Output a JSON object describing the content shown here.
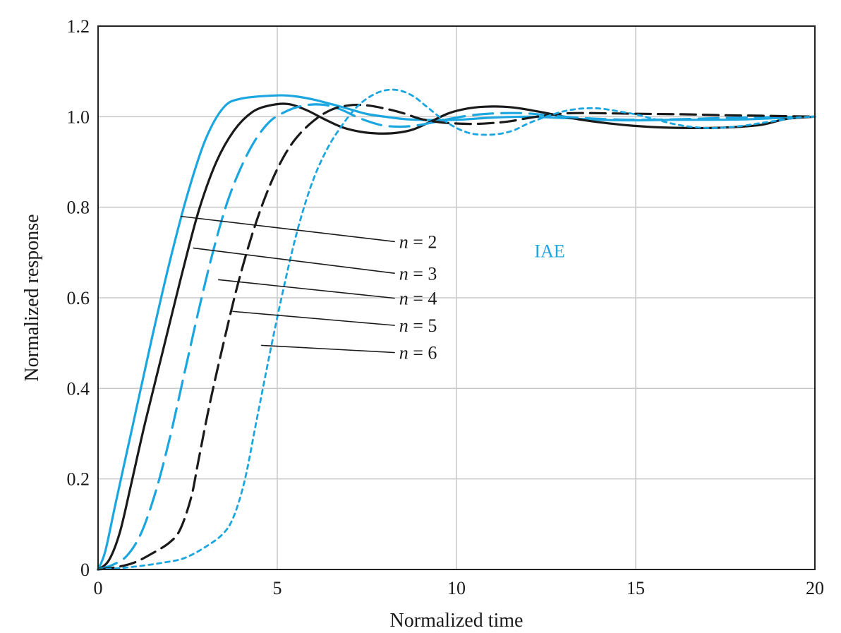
{
  "chart_data": {
    "type": "line",
    "title": "",
    "xlabel": "Normalized time",
    "ylabel": "Normalized response",
    "xlim": [
      0,
      20
    ],
    "ylim": [
      0,
      1.2
    ],
    "x_ticks": [
      {
        "value": 0,
        "label": "0"
      },
      {
        "value": 5,
        "label": "5"
      },
      {
        "value": 10,
        "label": "10"
      },
      {
        "value": 15,
        "label": "15"
      },
      {
        "value": 20,
        "label": "20"
      }
    ],
    "y_ticks": [
      {
        "value": 0,
        "label": "0"
      },
      {
        "value": 0.2,
        "label": "0.2"
      },
      {
        "value": 0.4,
        "label": "0.4"
      },
      {
        "value": 0.6,
        "label": "0.6"
      },
      {
        "value": 0.8,
        "label": "0.8"
      },
      {
        "value": 1.0,
        "label": "1.0"
      },
      {
        "value": 1.2,
        "label": "1.2"
      }
    ],
    "grid": true,
    "annotation": {
      "text": "IAE",
      "x": 12.6,
      "y": 0.69,
      "color": "#1ba6e0"
    },
    "series": [
      {
        "name": "n = 2",
        "label_var": "n",
        "label_rest": " = 2",
        "color": "#1ba6e0",
        "dash": "solid",
        "width": 3.2,
        "leader_point": [
          2.3,
          0.78
        ],
        "label_pos": [
          8.4,
          0.71
        ],
        "points": [
          [
            0,
            0
          ],
          [
            0.2,
            0.04
          ],
          [
            0.5,
            0.15
          ],
          [
            1.0,
            0.33
          ],
          [
            1.5,
            0.51
          ],
          [
            2.0,
            0.68
          ],
          [
            2.5,
            0.83
          ],
          [
            3.0,
            0.95
          ],
          [
            3.5,
            1.02
          ],
          [
            4.0,
            1.04
          ],
          [
            5.0,
            1.047
          ],
          [
            5.5,
            1.045
          ],
          [
            6.0,
            1.038
          ],
          [
            6.5,
            1.028
          ],
          [
            7.0,
            1.017
          ],
          [
            7.5,
            1.006
          ],
          [
            8.0,
            1.0
          ],
          [
            8.5,
            0.995
          ],
          [
            9.0,
            0.993
          ],
          [
            10.0,
            0.993
          ],
          [
            11.0,
            0.998
          ],
          [
            12.0,
            1.0
          ],
          [
            13.0,
            0.997
          ],
          [
            14.0,
            0.993
          ],
          [
            15.0,
            0.992
          ],
          [
            16.0,
            0.993
          ],
          [
            17.0,
            0.993
          ],
          [
            18.0,
            0.994
          ],
          [
            19.0,
            0.997
          ],
          [
            20.0,
            1.0
          ]
        ]
      },
      {
        "name": "n = 3",
        "label_var": "n",
        "label_rest": " = 3",
        "color": "#1a1a1a",
        "dash": "solid",
        "width": 3.2,
        "leader_point": [
          2.65,
          0.71
        ],
        "label_pos": [
          8.4,
          0.64
        ],
        "points": [
          [
            0,
            0
          ],
          [
            0.3,
            0.02
          ],
          [
            0.6,
            0.08
          ],
          [
            0.9,
            0.18
          ],
          [
            1.3,
            0.32
          ],
          [
            1.8,
            0.48
          ],
          [
            2.3,
            0.64
          ],
          [
            2.8,
            0.79
          ],
          [
            3.3,
            0.9
          ],
          [
            3.8,
            0.97
          ],
          [
            4.3,
            1.01
          ],
          [
            4.8,
            1.025
          ],
          [
            5.3,
            1.028
          ],
          [
            5.8,
            1.015
          ],
          [
            6.3,
            0.995
          ],
          [
            6.8,
            0.977
          ],
          [
            7.3,
            0.967
          ],
          [
            7.8,
            0.963
          ],
          [
            8.3,
            0.964
          ],
          [
            8.8,
            0.972
          ],
          [
            9.3,
            0.99
          ],
          [
            9.8,
            1.008
          ],
          [
            10.3,
            1.018
          ],
          [
            10.8,
            1.022
          ],
          [
            11.3,
            1.022
          ],
          [
            11.8,
            1.018
          ],
          [
            12.5,
            1.008
          ],
          [
            13.5,
            0.993
          ],
          [
            14.5,
            0.983
          ],
          [
            15.5,
            0.977
          ],
          [
            16.5,
            0.975
          ],
          [
            17.5,
            0.976
          ],
          [
            18.5,
            0.982
          ],
          [
            19.2,
            0.995
          ],
          [
            20.0,
            1.0
          ]
        ]
      },
      {
        "name": "n = 4",
        "label_var": "n",
        "label_rest": " = 4",
        "color": "#1ba6e0",
        "dash": "28 12",
        "width": 3.2,
        "leader_point": [
          3.35,
          0.64
        ],
        "label_pos": [
          8.4,
          0.585
        ],
        "points": [
          [
            0,
            0
          ],
          [
            0.4,
            0.01
          ],
          [
            0.8,
            0.03
          ],
          [
            1.2,
            0.08
          ],
          [
            1.6,
            0.17
          ],
          [
            2.0,
            0.29
          ],
          [
            2.4,
            0.43
          ],
          [
            2.8,
            0.57
          ],
          [
            3.2,
            0.7
          ],
          [
            3.6,
            0.81
          ],
          [
            4.0,
            0.89
          ],
          [
            4.4,
            0.95
          ],
          [
            4.8,
            0.99
          ],
          [
            5.2,
            1.01
          ],
          [
            5.6,
            1.022
          ],
          [
            6.0,
            1.027
          ],
          [
            6.4,
            1.025
          ],
          [
            6.8,
            1.015
          ],
          [
            7.2,
            1.0
          ],
          [
            7.6,
            0.988
          ],
          [
            8.0,
            0.98
          ],
          [
            8.5,
            0.978
          ],
          [
            9.0,
            0.982
          ],
          [
            9.5,
            0.99
          ],
          [
            10.0,
            0.998
          ],
          [
            10.5,
            1.004
          ],
          [
            11.0,
            1.007
          ],
          [
            11.5,
            1.008
          ],
          [
            12.0,
            1.007
          ],
          [
            13.0,
            1.0
          ],
          [
            14.0,
            0.995
          ],
          [
            15.0,
            0.993
          ],
          [
            16.0,
            0.994
          ],
          [
            17.0,
            0.996
          ],
          [
            18.0,
            0.998
          ],
          [
            19.0,
            0.999
          ],
          [
            20.0,
            1.0
          ]
        ]
      },
      {
        "name": "n = 5",
        "label_var": "n",
        "label_rest": " = 5",
        "color": "#1a1a1a",
        "dash": "22 10",
        "width": 3.2,
        "leader_point": [
          3.75,
          0.57
        ],
        "label_pos": [
          8.4,
          0.525
        ],
        "points": [
          [
            0,
            0
          ],
          [
            0.5,
            0.005
          ],
          [
            1.0,
            0.015
          ],
          [
            1.5,
            0.035
          ],
          [
            2.0,
            0.06
          ],
          [
            2.3,
            0.09
          ],
          [
            2.6,
            0.16
          ],
          [
            2.8,
            0.24
          ],
          [
            3.1,
            0.36
          ],
          [
            3.5,
            0.5
          ],
          [
            3.9,
            0.63
          ],
          [
            4.3,
            0.74
          ],
          [
            4.7,
            0.83
          ],
          [
            5.1,
            0.9
          ],
          [
            5.5,
            0.95
          ],
          [
            6.0,
            0.99
          ],
          [
            6.5,
            1.015
          ],
          [
            7.0,
            1.025
          ],
          [
            7.5,
            1.025
          ],
          [
            8.0,
            1.018
          ],
          [
            8.5,
            1.008
          ],
          [
            9.0,
            0.995
          ],
          [
            9.5,
            0.988
          ],
          [
            10.0,
            0.985
          ],
          [
            10.5,
            0.984
          ],
          [
            11.0,
            0.986
          ],
          [
            11.5,
            0.99
          ],
          [
            12.0,
            0.997
          ],
          [
            12.5,
            1.003
          ],
          [
            13.0,
            1.007
          ],
          [
            13.5,
            1.008
          ],
          [
            14.5,
            1.007
          ],
          [
            15.5,
            1.006
          ],
          [
            16.5,
            1.005
          ],
          [
            17.5,
            1.003
          ],
          [
            18.5,
            1.002
          ],
          [
            20.0,
            1.0
          ]
        ]
      },
      {
        "name": "n = 6",
        "label_var": "n",
        "label_rest": " = 6",
        "color": "#1ba6e0",
        "dash": "6 6",
        "width": 2.8,
        "leader_point": [
          4.55,
          0.495
        ],
        "label_pos": [
          8.4,
          0.465
        ],
        "points": [
          [
            0,
            0
          ],
          [
            0.6,
            0.003
          ],
          [
            1.2,
            0.008
          ],
          [
            1.8,
            0.015
          ],
          [
            2.4,
            0.025
          ],
          [
            3.0,
            0.05
          ],
          [
            3.5,
            0.08
          ],
          [
            3.8,
            0.12
          ],
          [
            4.1,
            0.2
          ],
          [
            4.4,
            0.32
          ],
          [
            4.8,
            0.48
          ],
          [
            5.2,
            0.63
          ],
          [
            5.6,
            0.76
          ],
          [
            6.0,
            0.86
          ],
          [
            6.4,
            0.93
          ],
          [
            6.8,
            0.98
          ],
          [
            7.2,
            1.02
          ],
          [
            7.6,
            1.045
          ],
          [
            8.0,
            1.058
          ],
          [
            8.4,
            1.058
          ],
          [
            8.8,
            1.045
          ],
          [
            9.2,
            1.02
          ],
          [
            9.6,
            0.995
          ],
          [
            10.0,
            0.975
          ],
          [
            10.4,
            0.963
          ],
          [
            10.8,
            0.96
          ],
          [
            11.2,
            0.962
          ],
          [
            11.6,
            0.97
          ],
          [
            12.0,
            0.985
          ],
          [
            12.5,
            1.0
          ],
          [
            13.0,
            1.012
          ],
          [
            13.5,
            1.018
          ],
          [
            14.0,
            1.018
          ],
          [
            14.5,
            1.012
          ],
          [
            15.0,
            1.005
          ],
          [
            15.5,
            0.995
          ],
          [
            16.0,
            0.985
          ],
          [
            16.5,
            0.978
          ],
          [
            17.0,
            0.975
          ],
          [
            17.5,
            0.976
          ],
          [
            18.0,
            0.98
          ],
          [
            18.5,
            0.986
          ],
          [
            19.0,
            0.992
          ],
          [
            19.5,
            0.998
          ],
          [
            20.0,
            1.0
          ]
        ]
      }
    ]
  }
}
